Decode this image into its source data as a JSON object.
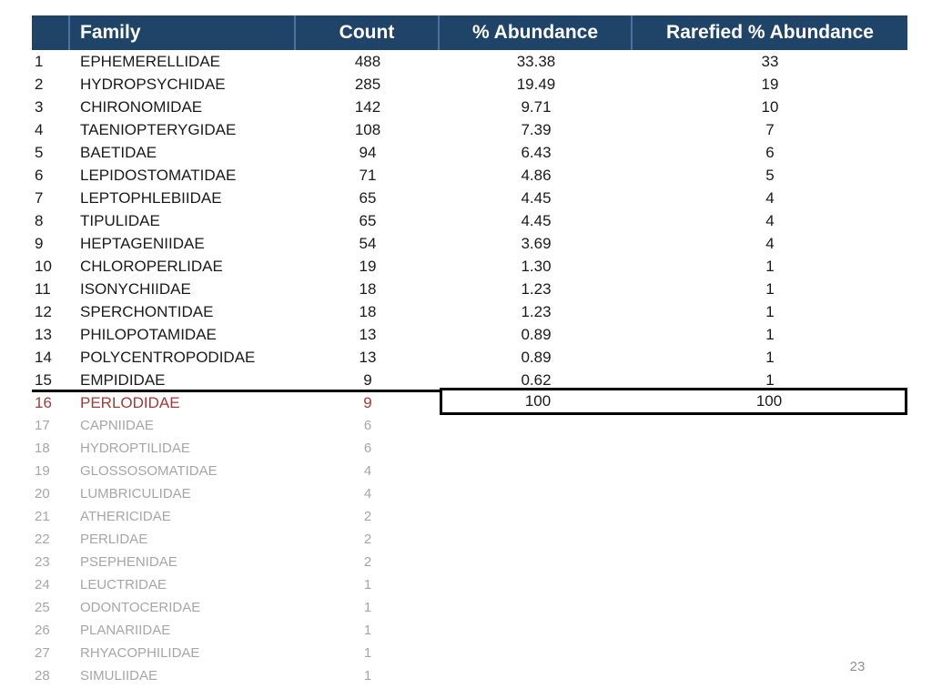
{
  "slide": {
    "page_number": "23"
  },
  "colors": {
    "header_background": "#1F4468",
    "header_divider": "#4C72A2",
    "header_text": "#FFFFFF",
    "body_text": "#1A1A1A",
    "highlight_row_text": "#9E3B3B",
    "muted_row_text": "#A6A6A6",
    "cutoff_border": "#000000",
    "page_number_text": "#8F8F8F"
  },
  "table": {
    "headers": {
      "rank": "",
      "family": "Family",
      "count": "Count",
      "pct_abundance": "% Abundance",
      "rarefied": "Rarefied % Abundance"
    },
    "rows": [
      {
        "rank": "1",
        "family": "EPHEMERELLIDAE",
        "count": "488",
        "pct": "33.38",
        "rarefied": "33",
        "style": "normal"
      },
      {
        "rank": "2",
        "family": "HYDROPSYCHIDAE",
        "count": "285",
        "pct": "19.49",
        "rarefied": "19",
        "style": "normal"
      },
      {
        "rank": "3",
        "family": "CHIRONOMIDAE",
        "count": "142",
        "pct": "9.71",
        "rarefied": "10",
        "style": "normal"
      },
      {
        "rank": "4",
        "family": "TAENIOPTERYGIDAE",
        "count": "108",
        "pct": "7.39",
        "rarefied": "7",
        "style": "normal"
      },
      {
        "rank": "5",
        "family": "BAETIDAE",
        "count": "94",
        "pct": "6.43",
        "rarefied": "6",
        "style": "normal"
      },
      {
        "rank": "6",
        "family": "LEPIDOSTOMATIDAE",
        "count": "71",
        "pct": "4.86",
        "rarefied": "5",
        "style": "normal"
      },
      {
        "rank": "7",
        "family": "LEPTOPHLEBIIDAE",
        "count": "65",
        "pct": "4.45",
        "rarefied": "4",
        "style": "normal"
      },
      {
        "rank": "8",
        "family": "TIPULIDAE",
        "count": "65",
        "pct": "4.45",
        "rarefied": "4",
        "style": "normal"
      },
      {
        "rank": "9",
        "family": "HEPTAGENIIDAE",
        "count": "54",
        "pct": "3.69",
        "rarefied": "4",
        "style": "normal"
      },
      {
        "rank": "10",
        "family": "CHLOROPERLIDAE",
        "count": "19",
        "pct": "1.30",
        "rarefied": "1",
        "style": "normal"
      },
      {
        "rank": "11",
        "family": "ISONYCHIIDAE",
        "count": "18",
        "pct": "1.23",
        "rarefied": "1",
        "style": "normal"
      },
      {
        "rank": "12",
        "family": "SPERCHONTIDAE",
        "count": "18",
        "pct": "1.23",
        "rarefied": "1",
        "style": "normal"
      },
      {
        "rank": "13",
        "family": "PHILOPOTAMIDAE",
        "count": "13",
        "pct": "0.89",
        "rarefied": "1",
        "style": "normal"
      },
      {
        "rank": "14",
        "family": "POLYCENTROPODIDAE",
        "count": "13",
        "pct": "0.89",
        "rarefied": "1",
        "style": "normal"
      },
      {
        "rank": "15",
        "family": "EMPIDIDAE",
        "count": "9",
        "pct": "0.62",
        "rarefied": "1",
        "style": "normal"
      },
      {
        "rank": "16",
        "family": "PERLODIDAE",
        "count": "9",
        "pct": "",
        "rarefied": "",
        "style": "highlight"
      },
      {
        "rank": "17",
        "family": "CAPNIIDAE",
        "count": "6",
        "pct": "",
        "rarefied": "",
        "style": "muted"
      },
      {
        "rank": "18",
        "family": "HYDROPTILIDAE",
        "count": "6",
        "pct": "",
        "rarefied": "",
        "style": "muted"
      },
      {
        "rank": "19",
        "family": "GLOSSOSOMATIDAE",
        "count": "4",
        "pct": "",
        "rarefied": "",
        "style": "muted"
      },
      {
        "rank": "20",
        "family": "LUMBRICULIDAE",
        "count": "4",
        "pct": "",
        "rarefied": "",
        "style": "muted"
      },
      {
        "rank": "21",
        "family": "ATHERICIDAE",
        "count": "2",
        "pct": "",
        "rarefied": "",
        "style": "muted"
      },
      {
        "rank": "22",
        "family": "PERLIDAE",
        "count": "2",
        "pct": "",
        "rarefied": "",
        "style": "muted"
      },
      {
        "rank": "23",
        "family": "PSEPHENIDAE",
        "count": "2",
        "pct": "",
        "rarefied": "",
        "style": "muted"
      },
      {
        "rank": "24",
        "family": "LEUCTRIDAE",
        "count": "1",
        "pct": "",
        "rarefied": "",
        "style": "muted"
      },
      {
        "rank": "25",
        "family": "ODONTOCERIDAE",
        "count": "1",
        "pct": "",
        "rarefied": "",
        "style": "muted"
      },
      {
        "rank": "26",
        "family": "PLANARIIDAE",
        "count": "1",
        "pct": "",
        "rarefied": "",
        "style": "muted"
      },
      {
        "rank": "27",
        "family": "RHYACOPHILIDAE",
        "count": "1",
        "pct": "",
        "rarefied": "",
        "style": "muted"
      },
      {
        "rank": "28",
        "family": "SIMULIIDAE",
        "count": "1",
        "pct": "",
        "rarefied": "",
        "style": "muted"
      }
    ],
    "totals": {
      "pct": "100",
      "rarefied": "100"
    }
  }
}
